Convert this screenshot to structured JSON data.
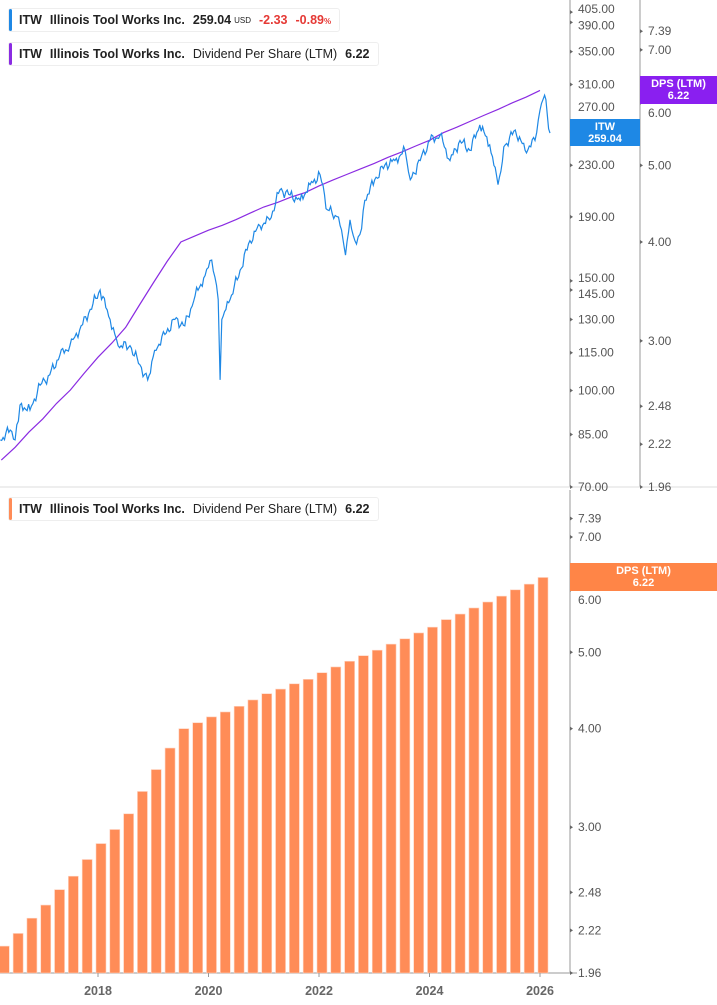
{
  "legend_price": {
    "ticker": "ITW",
    "name": "Illinois Tool Works Inc.",
    "price": "259.04",
    "currency": "USD",
    "change": "-2.33",
    "change_pct": "-0.89",
    "pct_sign": "%",
    "color": "#1e88e5"
  },
  "legend_dps_top": {
    "ticker": "ITW",
    "name": "Illinois Tool Works Inc.",
    "metric": "Dividend Per Share (LTM)",
    "value": "6.22",
    "color": "#8a2be2"
  },
  "legend_dps_bottom": {
    "ticker": "ITW",
    "name": "Illinois Tool Works Inc.",
    "metric": "Dividend Per Share (LTM)",
    "value": "6.22",
    "color": "#ff8c57"
  },
  "tags": {
    "price": {
      "line1": "ITW",
      "line2": "259.04"
    },
    "dps_top": {
      "line1": "DPS (LTM)",
      "line2": "6.22"
    },
    "dps_bottom": {
      "line1": "DPS (LTM)",
      "line2": "6.22"
    }
  },
  "chart_data": [
    {
      "type": "line",
      "scale": "log",
      "price_axis_ticks": [
        405,
        390,
        350,
        310,
        270,
        230,
        190,
        150,
        145,
        130,
        115,
        100,
        85,
        70
      ],
      "dps_axis_ticks": [
        7.39,
        7.0,
        6.0,
        5.0,
        4.0,
        3.0,
        2.48,
        2.22,
        1.96
      ],
      "ylim_price": [
        70,
        405
      ],
      "ylim_dps": [
        1.96,
        7.39
      ],
      "series": [
        {
          "name": "ITW",
          "color": "#1e88e5",
          "points": [
            [
              "2016-03-25",
              83.3
            ],
            [
              "2016-05-29",
              86.4
            ],
            [
              "2016-07-01",
              83.3
            ],
            [
              "2016-08-03",
              94.8
            ],
            [
              "2016-10-08",
              93.0
            ],
            [
              "2016-12-14",
              102
            ],
            [
              "2017-02-17",
              106
            ],
            [
              "2017-04-23",
              114
            ],
            [
              "2017-06-28",
              118
            ],
            [
              "2017-09-01",
              125
            ],
            [
              "2017-11-10",
              135
            ],
            [
              "2018-01-15",
              145
            ],
            [
              "2018-03-20",
              130
            ],
            [
              "2018-05-12",
              118
            ],
            [
              "2018-07-30",
              118
            ],
            [
              "2018-10-04",
              110
            ],
            [
              "2018-11-25",
              104
            ],
            [
              "2019-01-10",
              116
            ],
            [
              "2019-03-17",
              123
            ],
            [
              "2019-05-22",
              130
            ],
            [
              "2019-07-27",
              127
            ],
            [
              "2019-10-04",
              142
            ],
            [
              "2019-12-09",
              153
            ],
            [
              "2020-01-22",
              162
            ],
            [
              "2020-03-04",
              140
            ],
            [
              "2020-03-17",
              104
            ],
            [
              "2020-03-28",
              130
            ],
            [
              "2020-05-22",
              140
            ],
            [
              "2020-07-27",
              156
            ],
            [
              "2020-10-01",
              174
            ],
            [
              "2020-12-06",
              184
            ],
            [
              "2021-02-10",
              188
            ],
            [
              "2021-04-17",
              210
            ],
            [
              "2021-06-23",
              206
            ],
            [
              "2021-08-29",
              202
            ],
            [
              "2021-11-03",
              214
            ],
            [
              "2022-01-08",
              222
            ],
            [
              "2022-02-27",
              195
            ],
            [
              "2022-04-17",
              191
            ],
            [
              "2022-05-19",
              184
            ],
            [
              "2022-06-24",
              165
            ],
            [
              "2022-07-23",
              188
            ],
            [
              "2022-08-25",
              174
            ],
            [
              "2022-09-28",
              178
            ],
            [
              "2022-10-30",
              202
            ],
            [
              "2023-01-04",
              218
            ],
            [
              "2023-03-10",
              230
            ],
            [
              "2023-05-16",
              234
            ],
            [
              "2023-07-22",
              243
            ],
            [
              "2023-08-26",
              218
            ],
            [
              "2023-10-31",
              234
            ],
            [
              "2024-01-04",
              252
            ],
            [
              "2024-03-10",
              257
            ],
            [
              "2024-05-15",
              234
            ],
            [
              "2024-07-20",
              252
            ],
            [
              "2024-09-24",
              243
            ],
            [
              "2024-11-29",
              267
            ],
            [
              "2025-02-03",
              248
            ],
            [
              "2025-03-28",
              214
            ],
            [
              "2025-05-15",
              248
            ],
            [
              "2025-07-20",
              262
            ],
            [
              "2025-09-24",
              243
            ],
            [
              "2025-11-29",
              252
            ],
            [
              "2026-01-01",
              282
            ],
            [
              "2026-02-01",
              298
            ],
            [
              "2026-03-06",
              259.04
            ]
          ]
        },
        {
          "name": "Dividend Per Share (LTM)",
          "color": "#8a2be2",
          "source": "dps"
        }
      ]
    },
    {
      "type": "bar",
      "scale": "log",
      "name": "Dividend Per Share (LTM)",
      "color": "#ff8c57",
      "y_ticks": [
        7.39,
        7.0,
        6.0,
        5.0,
        4.0,
        3.0,
        2.48,
        2.22,
        1.96
      ],
      "ylim": [
        1.96,
        7.39
      ],
      "x_ticks": [
        "2018",
        "2020",
        "2022",
        "2024",
        "2026"
      ],
      "dates": [
        "2016-04",
        "2016-07",
        "2016-10",
        "2017-01",
        "2017-04",
        "2017-07",
        "2017-10",
        "2018-01",
        "2018-04",
        "2018-07",
        "2018-10",
        "2019-01",
        "2019-04",
        "2019-07",
        "2019-10",
        "2020-01",
        "2020-04",
        "2020-07",
        "2020-10",
        "2021-01",
        "2021-04",
        "2021-07",
        "2021-10",
        "2022-01",
        "2022-04",
        "2022-07",
        "2022-10",
        "2023-01",
        "2023-04",
        "2023-07",
        "2023-10",
        "2024-01",
        "2024-04",
        "2024-07",
        "2024-10",
        "2025-01",
        "2025-04",
        "2025-07",
        "2025-10",
        "2026-01"
      ],
      "values": [
        2.12,
        2.2,
        2.3,
        2.39,
        2.5,
        2.6,
        2.73,
        2.86,
        2.98,
        3.12,
        3.33,
        3.55,
        3.78,
        4.0,
        4.07,
        4.14,
        4.2,
        4.27,
        4.35,
        4.43,
        4.49,
        4.56,
        4.62,
        4.71,
        4.79,
        4.87,
        4.95,
        5.03,
        5.12,
        5.2,
        5.29,
        5.38,
        5.5,
        5.59,
        5.69,
        5.79,
        5.89,
        6.0,
        6.1,
        6.22
      ]
    }
  ]
}
